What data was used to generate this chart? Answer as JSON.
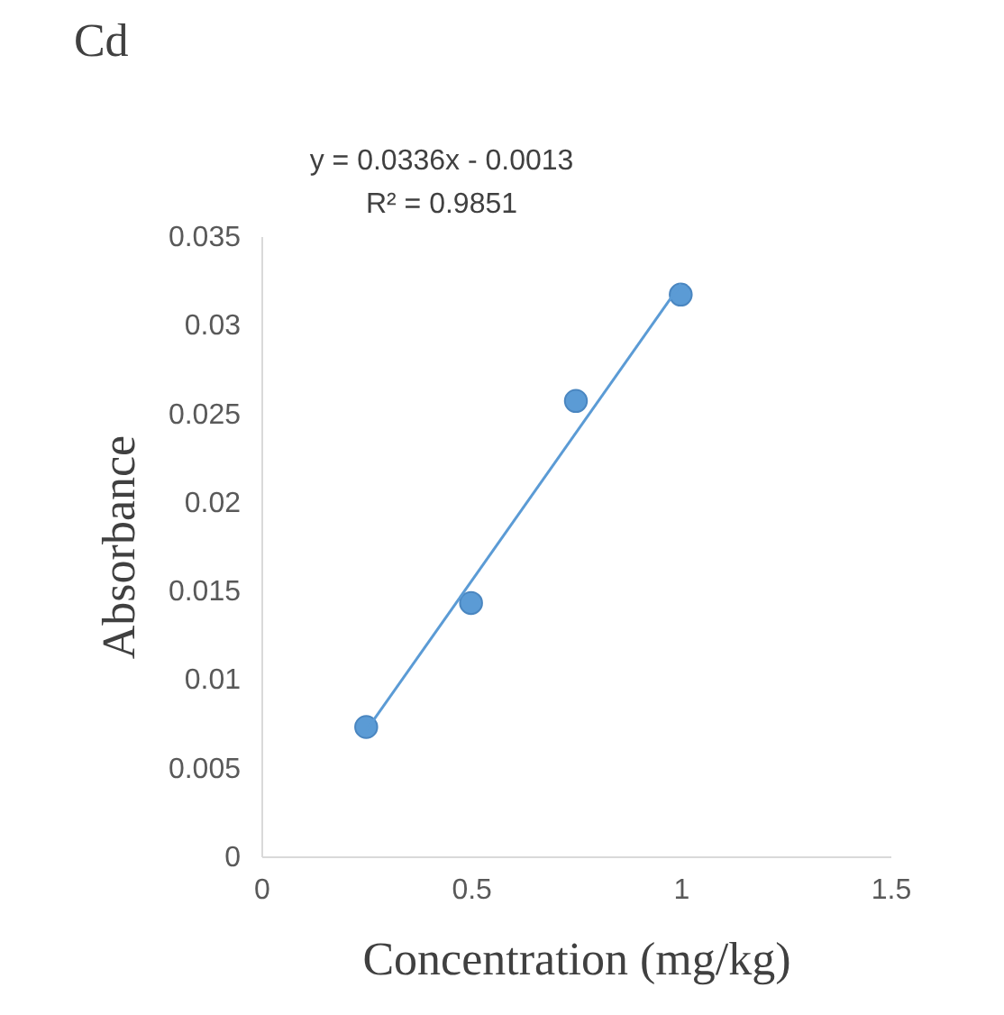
{
  "chart_data": {
    "type": "scatter",
    "title": "Cd",
    "xlabel": "Concentration (mg/kg)",
    "ylabel": "Absorbance",
    "annotations": [
      "y = 0.0336x - 0.0013",
      "R² = 0.9851"
    ],
    "series": [
      {
        "color": "#5b9bd5",
        "x": [
          0.25,
          0.5,
          0.75,
          1
        ],
        "values": [
          0.0073,
          0.0143,
          0.0257,
          0.0317
        ],
        "marker": "circle"
      },
      {
        "type": "line",
        "color": "#5b9bd5",
        "x": [
          0.25,
          1
        ],
        "values": [
          0.0071,
          0.0323
        ],
        "marker": "none",
        "line_style": "solid"
      }
    ],
    "xlim": [
      0,
      1.5
    ],
    "xticks": [
      0,
      0.5,
      1,
      1.5
    ],
    "ylim": [
      0,
      0.035
    ],
    "yticks": [
      0,
      0.005,
      0.01,
      0.015,
      0.02,
      0.025,
      0.03,
      0.035
    ],
    "grid": false
  }
}
